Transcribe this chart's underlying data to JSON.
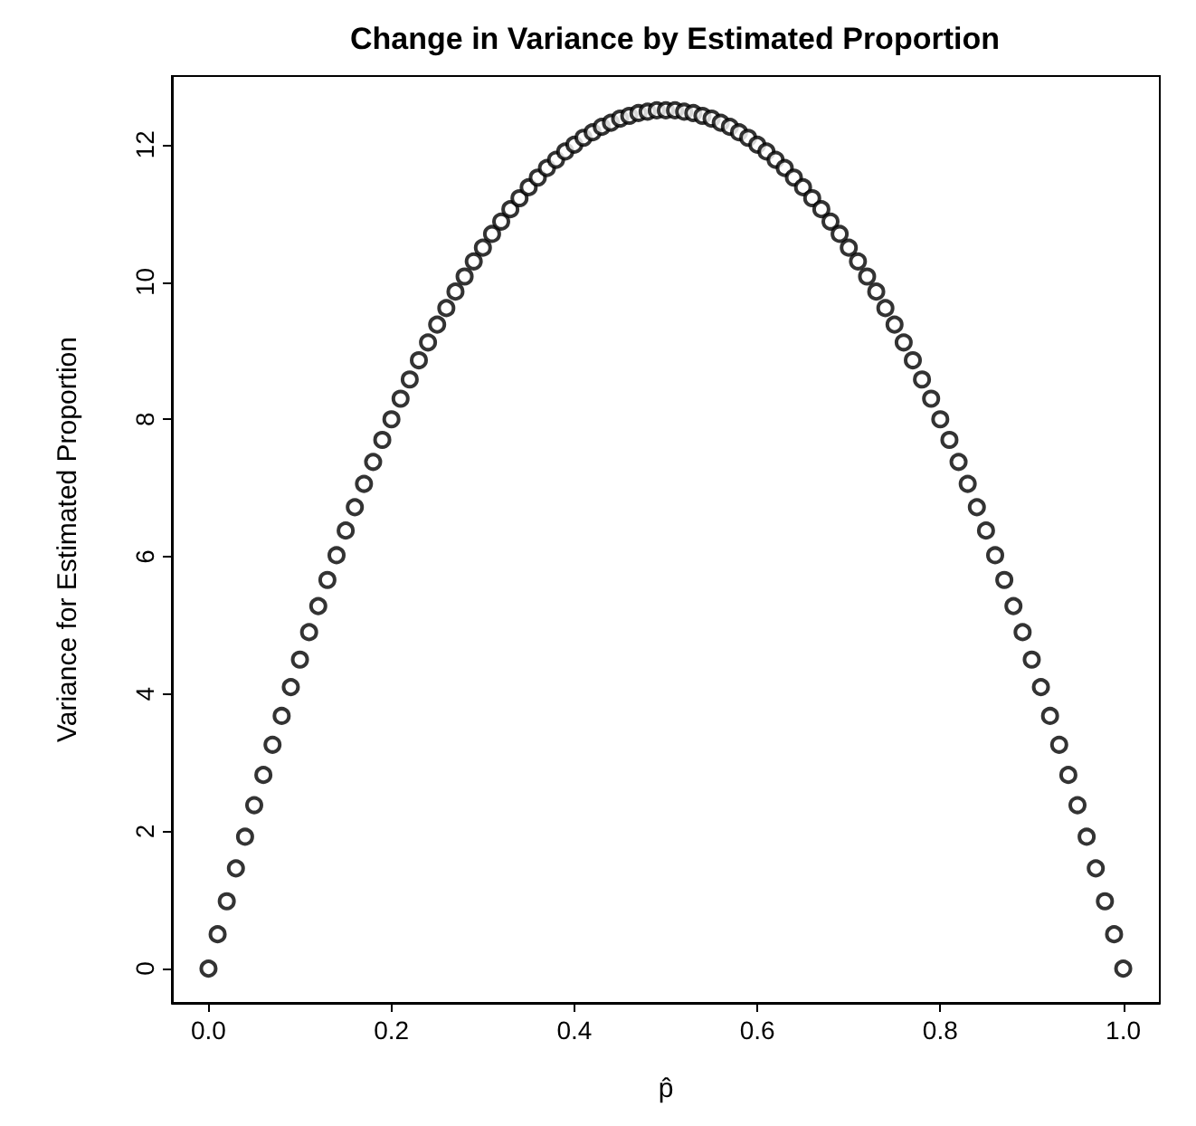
{
  "chart_data": {
    "type": "scatter",
    "title": "Change in Variance by Estimated Proportion",
    "xlabel": "p̂",
    "ylabel": "Variance for Estimated Proportion",
    "x": [
      0,
      0.01,
      0.02,
      0.03,
      0.04,
      0.05,
      0.06,
      0.07,
      0.08,
      0.09,
      0.1,
      0.11,
      0.12,
      0.13,
      0.14,
      0.15,
      0.16,
      0.17,
      0.18,
      0.19,
      0.2,
      0.21,
      0.22,
      0.23,
      0.24,
      0.25,
      0.26,
      0.27,
      0.28,
      0.29,
      0.3,
      0.31,
      0.32,
      0.33,
      0.34,
      0.35,
      0.36,
      0.37,
      0.38,
      0.39,
      0.4,
      0.41,
      0.42,
      0.43,
      0.44,
      0.45,
      0.46,
      0.47,
      0.48,
      0.49,
      0.5,
      0.51,
      0.52,
      0.53,
      0.54,
      0.55,
      0.56,
      0.57,
      0.58,
      0.59,
      0.6,
      0.61,
      0.62,
      0.63,
      0.64,
      0.65,
      0.66,
      0.67,
      0.68,
      0.69,
      0.7,
      0.71,
      0.72,
      0.73,
      0.74,
      0.75,
      0.76,
      0.77,
      0.78,
      0.79,
      0.8,
      0.81,
      0.82,
      0.83,
      0.84,
      0.85,
      0.86,
      0.87,
      0.88,
      0.89,
      0.9,
      0.91,
      0.92,
      0.93,
      0.94,
      0.95,
      0.96,
      0.97,
      0.98,
      0.99,
      1
    ],
    "values": [
      0,
      0.5,
      0.98,
      1.46,
      1.92,
      2.38,
      2.82,
      3.26,
      3.68,
      4.1,
      4.5,
      4.9,
      5.28,
      5.66,
      6.02,
      6.38,
      6.72,
      7.06,
      7.38,
      7.7,
      8,
      8.3,
      8.58,
      8.86,
      9.12,
      9.38,
      9.62,
      9.86,
      10.08,
      10.3,
      10.5,
      10.7,
      10.88,
      11.06,
      11.22,
      11.38,
      11.52,
      11.66,
      11.78,
      11.9,
      12,
      12.1,
      12.18,
      12.26,
      12.32,
      12.38,
      12.42,
      12.46,
      12.48,
      12.5,
      12.5,
      12.5,
      12.48,
      12.46,
      12.42,
      12.38,
      12.32,
      12.26,
      12.18,
      12.1,
      12,
      11.9,
      11.78,
      11.66,
      11.52,
      11.38,
      11.22,
      11.06,
      10.88,
      10.7,
      10.5,
      10.3,
      10.08,
      9.86,
      9.62,
      9.38,
      9.12,
      8.86,
      8.58,
      8.3,
      8,
      7.7,
      7.38,
      7.06,
      6.72,
      6.38,
      6.02,
      5.66,
      5.28,
      4.9,
      4.5,
      4.1,
      3.68,
      3.26,
      2.82,
      2.38,
      1.92,
      1.46,
      0.98,
      0.5,
      0
    ],
    "color": "#000000",
    "marker": "circle",
    "xlim": [
      -0.04,
      1.04
    ],
    "xticks": [
      {
        "value": 0,
        "label": "0.0"
      },
      0.2,
      0.4,
      0.6,
      0.8,
      {
        "value": 1,
        "label": "1.0"
      }
    ],
    "ylim": [
      -0.5,
      13
    ],
    "yticks": [
      0,
      2,
      4,
      6,
      8,
      10,
      12
    ],
    "grid": false
  }
}
